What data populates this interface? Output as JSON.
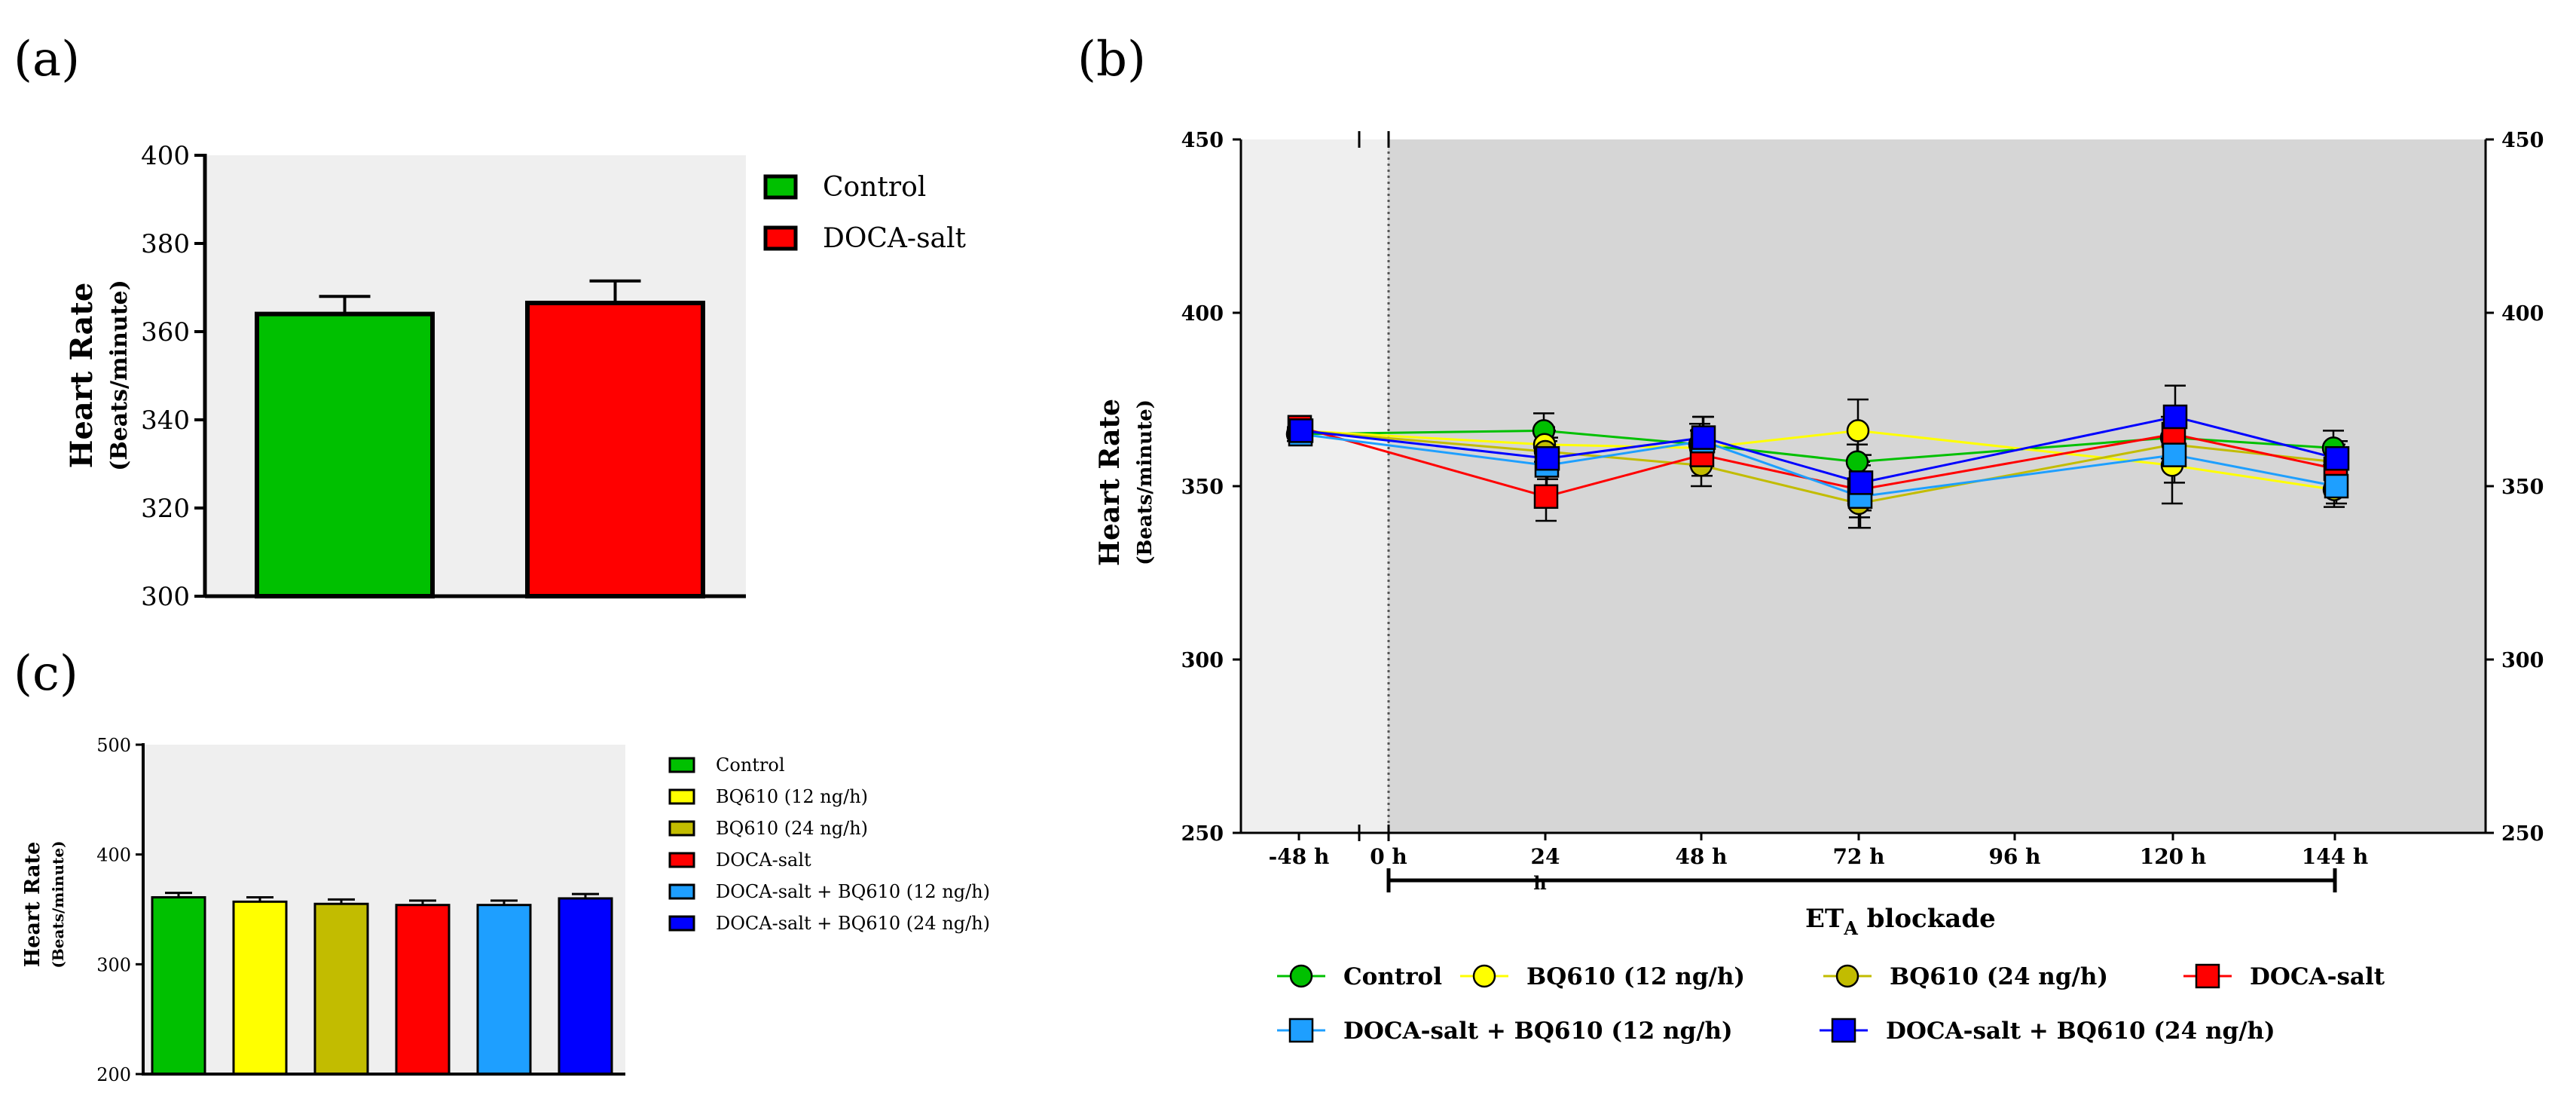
{
  "panels": {
    "a": "(a)",
    "b": "(b)",
    "c": "(c)"
  },
  "colors": {
    "control": "#00C000",
    "bq12": "#FFFF00",
    "bq24": "#C2BC00",
    "doca": "#FF0000",
    "doca_bq12": "#1E9FFF",
    "doca_bq24": "#0000FF"
  },
  "chart_data": [
    {
      "id": "a",
      "type": "bar",
      "ylabel": "Heart Rate",
      "ylabel_sub": "(Beats/minute)",
      "ylim": [
        300,
        400
      ],
      "yticks": [
        "300",
        "320",
        "340",
        "360",
        "380",
        "400"
      ],
      "categories": [
        "Control",
        "DOCA-salt"
      ],
      "values": [
        364,
        366.5
      ],
      "errors": [
        4,
        5
      ],
      "legend": [
        "Control",
        "DOCA-salt"
      ]
    },
    {
      "id": "b",
      "type": "line",
      "ylabel": "Heart Rate",
      "ylabel_sub": "(Beats/minute)",
      "ylim": [
        250,
        450
      ],
      "yticks": [
        "250",
        "300",
        "350",
        "400",
        "450"
      ],
      "xticks": [
        "-48 h",
        "0 h",
        "24",
        "48 h",
        "72 h",
        "96 h",
        "120 h",
        "144 h"
      ],
      "xtick_sub": "h",
      "bracket_label": "ET",
      "bracket_sub": "A",
      "bracket_suffix": " blockade",
      "x": [
        -48,
        24,
        48,
        72,
        120,
        144
      ],
      "series": [
        {
          "name": "Control",
          "values": [
            365,
            366,
            362,
            357,
            364,
            361
          ],
          "errors": [
            2,
            5,
            6,
            5,
            6,
            5
          ]
        },
        {
          "name": "BQ610 (12 ng/h)",
          "values": [
            366,
            362,
            361,
            366,
            356,
            349
          ],
          "errors": [
            2,
            5,
            5,
            9,
            11,
            5
          ]
        },
        {
          "name": "BQ610 (24 ng/h)",
          "values": [
            366,
            360,
            356,
            345,
            362,
            357
          ],
          "errors": [
            2,
            6,
            6,
            7,
            6,
            5
          ]
        },
        {
          "name": "DOCA-salt",
          "values": [
            367,
            347,
            359,
            349,
            365,
            355
          ],
          "errors": [
            2,
            7,
            6,
            8,
            6,
            6
          ]
        },
        {
          "name": "DOCA-salt + BQ610 (12 ng/h)",
          "values": [
            365,
            356,
            363,
            347,
            359,
            350
          ],
          "errors": [
            2,
            7,
            7,
            9,
            8,
            5
          ]
        },
        {
          "name": "DOCA-salt + BQ610 (24 ng/h)",
          "values": [
            366,
            358,
            364,
            351,
            370,
            358
          ],
          "errors": [
            2,
            6,
            6,
            8,
            9,
            5
          ]
        }
      ]
    },
    {
      "id": "c",
      "type": "bar",
      "ylabel": "Heart Rate",
      "ylabel_sub": "(Beats/minute)",
      "ylim": [
        200,
        500
      ],
      "yticks": [
        "200",
        "300",
        "400",
        "500"
      ],
      "categories": [
        "Control",
        "BQ610 (12 ng/h)",
        "BQ610 (24 ng/h)",
        "DOCA-salt",
        "DOCA-salt + BQ610 (12 ng/h)",
        "DOCA-salt + BQ610 (24 ng/h)"
      ],
      "values": [
        361,
        357,
        355,
        354,
        354,
        360
      ],
      "errors": [
        4,
        4,
        4,
        4,
        4,
        4
      ],
      "legend": [
        "Control",
        "BQ610 (12 ng/h)",
        "BQ610 (24 ng/h)",
        "DOCA-salt",
        "DOCA-salt + BQ610 (12 ng/h)",
        "DOCA-salt + BQ610 (24 ng/h)"
      ]
    }
  ]
}
